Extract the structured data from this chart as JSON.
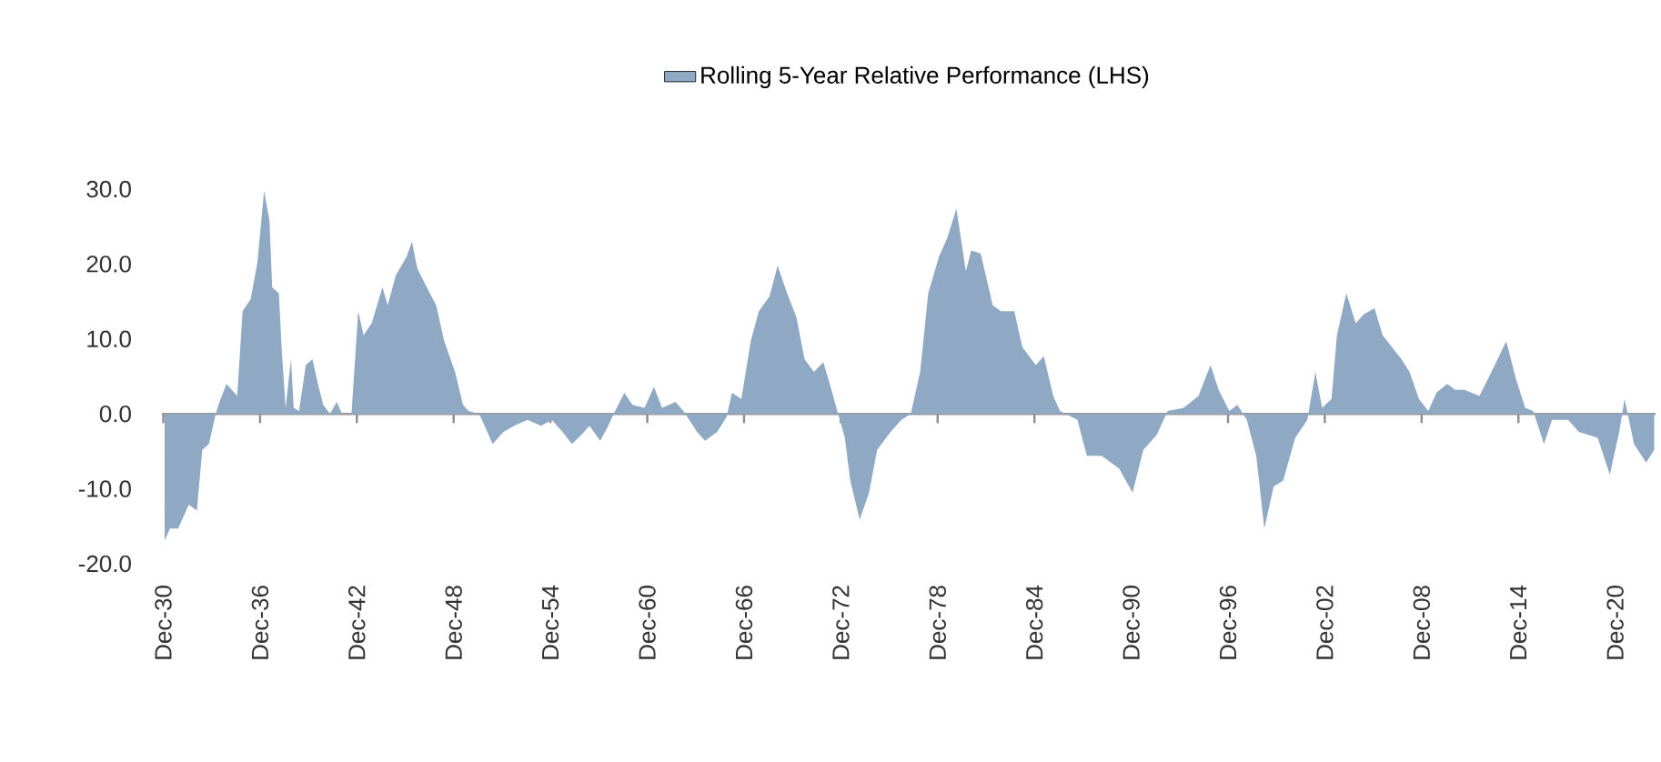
{
  "chart_data": {
    "type": "area",
    "legend": "top",
    "xlim": [
      "1930-11",
      "2023-06"
    ],
    "ylim": [
      -20,
      30
    ],
    "yticks": [
      {
        "value": 30,
        "label": "30.0"
      },
      {
        "value": 20,
        "label": "20.0"
      },
      {
        "value": 10,
        "label": "10.0"
      },
      {
        "value": 0,
        "label": "0.0"
      },
      {
        "value": -10,
        "label": "-10.0"
      },
      {
        "value": -20,
        "label": "-20.0"
      }
    ],
    "xticks": [
      {
        "value": "1930-12",
        "label": "Dec-30"
      },
      {
        "value": "1936-12",
        "label": "Dec-36"
      },
      {
        "value": "1942-12",
        "label": "Dec-42"
      },
      {
        "value": "1948-12",
        "label": "Dec-48"
      },
      {
        "value": "1954-12",
        "label": "Dec-54"
      },
      {
        "value": "1960-12",
        "label": "Dec-60"
      },
      {
        "value": "1966-12",
        "label": "Dec-66"
      },
      {
        "value": "1972-12",
        "label": "Dec-72"
      },
      {
        "value": "1978-12",
        "label": "Dec-78"
      },
      {
        "value": "1984-12",
        "label": "Dec-84"
      },
      {
        "value": "1990-12",
        "label": "Dec-90"
      },
      {
        "value": "1996-12",
        "label": "Dec-96"
      },
      {
        "value": "2002-12",
        "label": "Dec-02"
      },
      {
        "value": "2008-12",
        "label": "Dec-08"
      },
      {
        "value": "2014-12",
        "label": "Dec-14"
      },
      {
        "value": "2020-12",
        "label": "Dec-20"
      }
    ],
    "x": [
      "1931-01",
      "1931-05",
      "1931-11",
      "1932-07",
      "1933-01",
      "1933-05",
      "1933-10",
      "1934-03",
      "1934-05",
      "1934-11",
      "1935-07",
      "1935-11",
      "1936-05",
      "1936-10",
      "1937-03",
      "1937-07",
      "1937-09",
      "1938-02",
      "1938-04",
      "1938-07",
      "1938-11",
      "1939-01",
      "1939-05",
      "1939-10",
      "1940-03",
      "1940-07",
      "1940-11",
      "1941-04",
      "1941-09",
      "1942-01",
      "1942-08",
      "1943-01",
      "1943-05",
      "1943-11",
      "1944-07",
      "1944-11",
      "1945-05",
      "1946-01",
      "1946-05",
      "1946-09",
      "1947-04",
      "1947-11",
      "1948-05",
      "1949-01",
      "1949-07",
      "1949-11",
      "1950-07",
      "1950-11",
      "1951-05",
      "1952-01",
      "1952-09",
      "1953-07",
      "1954-05",
      "1955-01",
      "1955-09",
      "1956-04",
      "1956-11",
      "1957-05",
      "1958-01",
      "1958-07",
      "1958-11",
      "1959-07",
      "1960-01",
      "1960-10",
      "1961-05",
      "1961-11",
      "1962-09",
      "1963-03",
      "1964-01",
      "1964-07",
      "1965-04",
      "1965-11",
      "1966-03",
      "1966-10",
      "1967-05",
      "1967-11",
      "1968-07",
      "1969-01",
      "1969-08",
      "1970-03",
      "1970-09",
      "1971-04",
      "1971-11",
      "1972-05",
      "1972-10",
      "1973-03",
      "1973-07",
      "1974-02",
      "1974-09",
      "1975-03",
      "1976-01",
      "1976-09",
      "1977-04",
      "1977-11",
      "1978-05",
      "1979-01",
      "1979-07",
      "1980-02",
      "1980-09",
      "1981-01",
      "1981-08",
      "1982-05",
      "1982-11",
      "1983-09",
      "1984-03",
      "1985-01",
      "1985-07",
      "1986-02",
      "1986-07",
      "1987-08",
      "1988-03",
      "1989-02",
      "1990-03",
      "1991-01",
      "1991-09",
      "1992-07",
      "1993-03",
      "1994-03",
      "1995-02",
      "1995-11",
      "1996-05",
      "1997-01",
      "1997-07",
      "1998-02",
      "1998-09",
      "1999-03",
      "1999-10",
      "2000-05",
      "2001-02",
      "2001-11",
      "2002-05",
      "2002-10",
      "2003-05",
      "2003-09",
      "2004-04",
      "2004-11",
      "2005-05",
      "2006-01",
      "2006-07",
      "2007-02",
      "2007-09",
      "2008-03",
      "2008-10",
      "2009-05",
      "2009-11",
      "2010-07",
      "2011-01",
      "2011-08",
      "2012-07",
      "2013-04",
      "2014-03",
      "2014-10",
      "2015-05",
      "2015-11",
      "2016-07",
      "2017-01",
      "2018-01",
      "2018-09",
      "2019-11",
      "2020-08",
      "2021-03",
      "2021-07",
      "2022-02",
      "2022-11",
      "2023-05"
    ],
    "series": [
      {
        "name": "Rolling 5-Year Relative Performance (LHS)",
        "color": "#8fa8c4",
        "values": [
          -16.9,
          -15.3,
          -15.3,
          -12.1,
          -12.9,
          -4.8,
          -4.0,
          0.0,
          1.2,
          4.0,
          2.4,
          13.7,
          15.3,
          20.2,
          29.8,
          25.8,
          16.9,
          16.1,
          8.9,
          0.8,
          7.3,
          0.8,
          0.4,
          6.5,
          7.3,
          4.0,
          1.2,
          0.0,
          1.6,
          0.0,
          0.0,
          13.7,
          10.5,
          12.1,
          16.9,
          14.5,
          18.5,
          21.0,
          23.0,
          19.4,
          16.9,
          14.5,
          9.7,
          5.6,
          1.2,
          0.4,
          0.0,
          -1.6,
          -4.0,
          -2.4,
          -1.6,
          -0.8,
          -1.6,
          -0.8,
          -2.4,
          -4.0,
          -2.8,
          -1.6,
          -3.6,
          -1.6,
          0.0,
          2.8,
          1.2,
          0.8,
          3.6,
          0.8,
          1.6,
          0.4,
          -2.4,
          -3.6,
          -2.4,
          -0.4,
          2.8,
          2.0,
          9.7,
          13.7,
          15.7,
          19.8,
          16.1,
          12.9,
          7.3,
          5.6,
          6.9,
          3.2,
          0.0,
          -3.2,
          -8.9,
          -14.1,
          -10.5,
          -4.8,
          -2.4,
          -0.8,
          0.0,
          5.6,
          16.1,
          21.0,
          23.4,
          27.4,
          19.0,
          21.8,
          21.4,
          14.5,
          13.7,
          13.7,
          8.9,
          6.5,
          7.7,
          2.4,
          0.4,
          -0.8,
          -5.6,
          -5.6,
          -7.3,
          -10.5,
          -4.8,
          -2.8,
          0.4,
          0.8,
          2.4,
          6.5,
          3.2,
          0.4,
          1.2,
          -0.8,
          -5.6,
          -15.3,
          -9.7,
          -8.9,
          -3.2,
          -0.8,
          5.6,
          0.8,
          2.0,
          10.5,
          16.1,
          12.1,
          13.3,
          14.1,
          10.5,
          8.9,
          7.3,
          5.6,
          2.0,
          0.4,
          2.8,
          4.0,
          3.2,
          3.2,
          2.4,
          5.6,
          9.7,
          4.8,
          0.8,
          0.4,
          -4.0,
          -0.8,
          -0.8,
          -2.4,
          -3.2,
          -8.1,
          -2.4,
          2.0,
          -4.0,
          -6.5,
          -4.8
        ]
      }
    ]
  }
}
